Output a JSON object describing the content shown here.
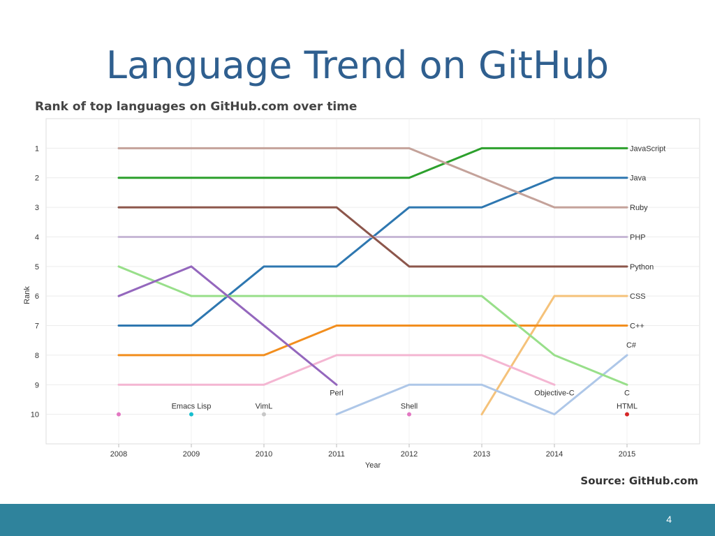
{
  "slide": {
    "title": "Language Trend on GitHub",
    "source": "Source: GitHub.com",
    "page_number": "4"
  },
  "colors": {
    "title": "#2f5f8f",
    "footer": "#2f839c"
  },
  "chart_data": {
    "type": "line",
    "title": "Rank of top languages on GitHub.com over time",
    "xlabel": "Year",
    "ylabel": "Rank",
    "x": [
      2008,
      2009,
      2010,
      2011,
      2012,
      2013,
      2014,
      2015
    ],
    "xlim": [
      2007,
      2016
    ],
    "ylim": [
      11,
      0
    ],
    "y_ticks": [
      1,
      2,
      3,
      4,
      5,
      6,
      7,
      8,
      9,
      10
    ],
    "y_inverted": true,
    "grid": true,
    "series": [
      {
        "name": "JavaScript",
        "color": "#2ca02c",
        "values": [
          2,
          2,
          2,
          2,
          2,
          1,
          1,
          1
        ],
        "label_year": 2015,
        "label_rank": 1,
        "label_pos": "right"
      },
      {
        "name": "Java",
        "color": "#2e77b0",
        "values": [
          7,
          7,
          5,
          5,
          3,
          3,
          2,
          2
        ],
        "label_year": 2015,
        "label_rank": 2,
        "label_pos": "right"
      },
      {
        "name": "Ruby",
        "color": "#c4a29a",
        "values": [
          1,
          1,
          1,
          1,
          1,
          2,
          3,
          3
        ],
        "label_year": 2015,
        "label_rank": 3,
        "label_pos": "right"
      },
      {
        "name": "PHP",
        "color": "#c7b8d6",
        "values": [
          4,
          4,
          4,
          4,
          4,
          4,
          4,
          4
        ],
        "label_year": 2015,
        "label_rank": 4,
        "label_pos": "right"
      },
      {
        "name": "Python",
        "color": "#8c564b",
        "values": [
          3,
          3,
          3,
          3,
          5,
          5,
          5,
          5
        ],
        "label_year": 2015,
        "label_rank": 5,
        "label_pos": "right"
      },
      {
        "name": "CSS",
        "color": "#f5c27a",
        "values": [
          null,
          null,
          null,
          null,
          null,
          10,
          6,
          6
        ],
        "label_year": 2015,
        "label_rank": 6,
        "label_pos": "right"
      },
      {
        "name": "C++",
        "color": "#f28e1e",
        "values": [
          8,
          8,
          8,
          7,
          7,
          7,
          7,
          7
        ],
        "label_year": 2015,
        "label_rank": 7,
        "label_pos": "right"
      },
      {
        "name": "C#",
        "color": "#aec7e8",
        "values": [
          null,
          null,
          null,
          10,
          9,
          9,
          10,
          8
        ],
        "label_year": 2015,
        "label_rank": 8,
        "label_pos": "above"
      },
      {
        "name": "C",
        "color": "#98df8a",
        "values": [
          5,
          6,
          6,
          6,
          6,
          6,
          8,
          9
        ],
        "label_year": 2015,
        "label_rank": 9,
        "label_pos": "below"
      },
      {
        "name": "Objective-C",
        "color": "#f4b6d2",
        "values": [
          9,
          9,
          9,
          8,
          8,
          8,
          9,
          null
        ],
        "label_year": 2014,
        "label_rank": 9,
        "label_pos": "below"
      },
      {
        "name": "Perl",
        "color": "#9467bd",
        "values": [
          6,
          5,
          7,
          9,
          null,
          null,
          null,
          null
        ],
        "label_year": 2011,
        "label_rank": 9,
        "label_pos": "below"
      }
    ],
    "points": [
      {
        "name": "",
        "year": 2008,
        "rank": 10,
        "color": "#e377c2"
      },
      {
        "name": "Emacs Lisp",
        "year": 2009,
        "rank": 10,
        "color": "#17becf"
      },
      {
        "name": "VimL",
        "year": 2010,
        "rank": 10,
        "color": "#c7c7c7"
      },
      {
        "name": "Shell",
        "year": 2012,
        "rank": 10,
        "color": "#e377c2"
      },
      {
        "name": "HTML",
        "year": 2015,
        "rank": 10,
        "color": "#d62728"
      }
    ]
  }
}
